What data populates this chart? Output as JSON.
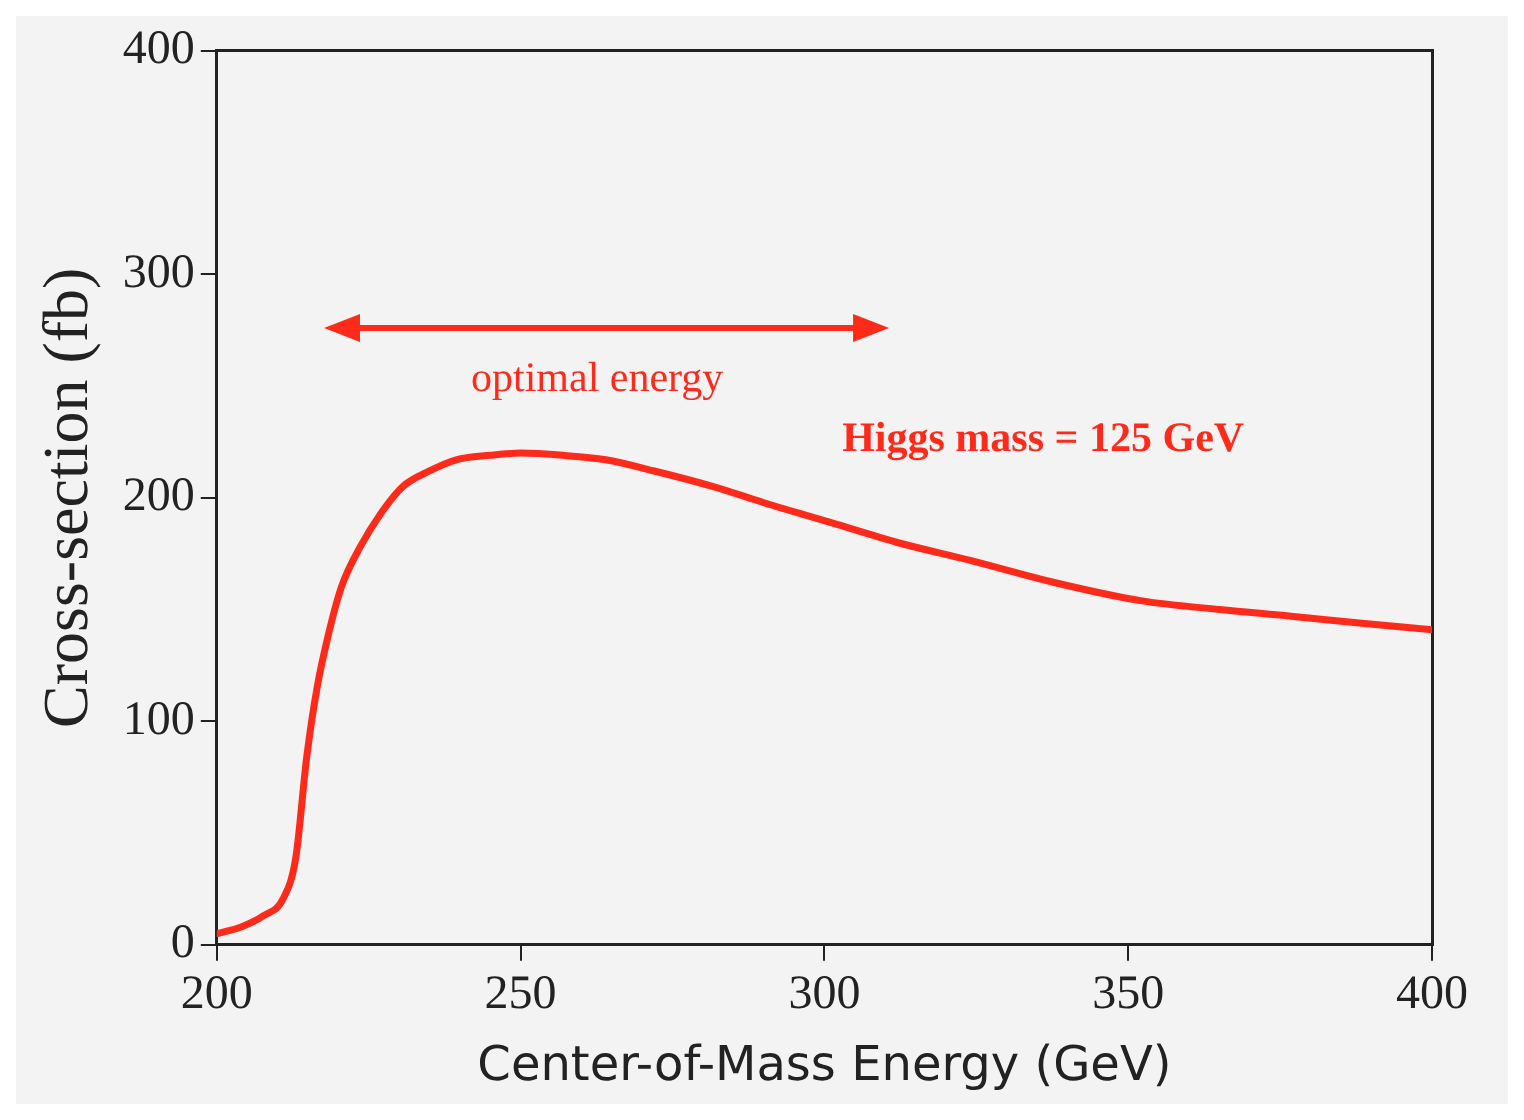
{
  "chart_data": {
    "type": "line",
    "xlabel": "Center-of-Mass Energy (GeV)",
    "ylabel": "Cross-section (fb)",
    "x": [
      200,
      204,
      207.7,
      211,
      213,
      214.8,
      216.5,
      218.3,
      220.5,
      223.6,
      227,
      230.6,
      235,
      239.4,
      245,
      250,
      257,
      264,
      272,
      281.7,
      291,
      301,
      312,
      324,
      338,
      352,
      365,
      376.8,
      388,
      400
    ],
    "series": [
      {
        "color": "#ff2a1a",
        "values": [
          5,
          8,
          13,
          21,
          39,
          84,
          115,
          138,
          160,
          178,
          193,
          205,
          212,
          217,
          219,
          220,
          219,
          217,
          212,
          205,
          197,
          189,
          180,
          172,
          162,
          154,
          150,
          147,
          144,
          141
        ]
      }
    ],
    "xlim": [
      200,
      400
    ],
    "xticks": [
      200,
      250,
      300,
      350,
      400
    ],
    "ylim": [
      0,
      400
    ],
    "yticks": [
      0,
      100,
      200,
      300,
      400
    ],
    "grid": false,
    "legend": false,
    "marker": "none",
    "line_style": "solid",
    "annotations": [
      "optimal energy",
      "Higgs mass = 125 GeV"
    ]
  }
}
